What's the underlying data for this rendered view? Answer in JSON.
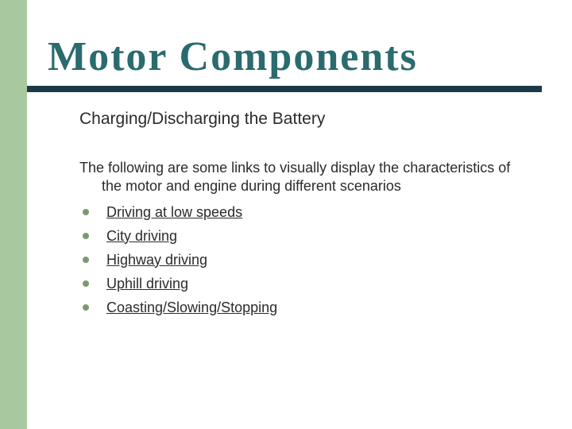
{
  "colors": {
    "accent_bar": "#a8c9a0",
    "title_color": "#2a6b6e",
    "underline_color": "#1a3a4a",
    "text_color": "#2b2b2b",
    "bullet_color": "#7a9a72",
    "background": "#ffffff"
  },
  "typography": {
    "title_font": "Brush Script MT",
    "title_size_pt": 40,
    "subtitle_size_pt": 16,
    "body_size_pt": 14
  },
  "title": "Motor Components",
  "subtitle": "Charging/Discharging the Battery",
  "intro_line1": "The following are some links to visually display the characteristics of",
  "intro_line2": "the motor and engine during different scenarios",
  "links": [
    {
      "label": "Driving at low speeds"
    },
    {
      "label": "City driving"
    },
    {
      "label": "Highway driving"
    },
    {
      "label": "Uphill driving"
    },
    {
      "label": "Coasting/Slowing/Stopping"
    }
  ]
}
